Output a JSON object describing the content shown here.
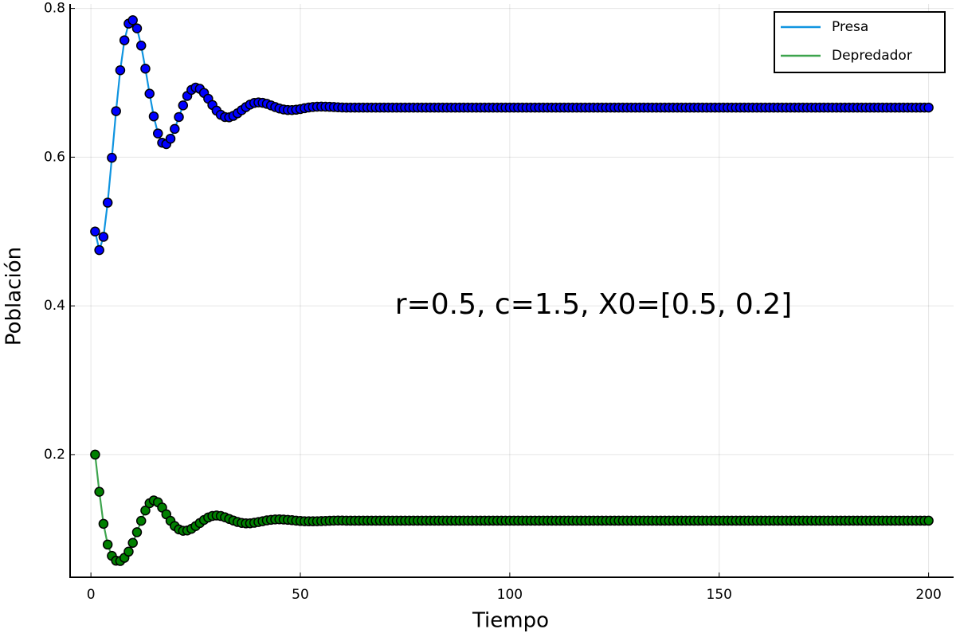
{
  "chart_data": {
    "type": "line",
    "xlabel": "Tiempo",
    "ylabel": "Población",
    "annotation": {
      "text": "r=0.5, c=1.5, X0=[0.5, 0.2]",
      "x": 120,
      "y": 0.4
    },
    "x": [
      1,
      2,
      3,
      4,
      5,
      6,
      7,
      8,
      9,
      10,
      11,
      12,
      13,
      14,
      15,
      16,
      17,
      18,
      19,
      20,
      21,
      22,
      23,
      24,
      25,
      26,
      27,
      28,
      29,
      30,
      31,
      32,
      33,
      34,
      35,
      36,
      37,
      38,
      39,
      40,
      41,
      42,
      43,
      44,
      45,
      46,
      47,
      48,
      49,
      50,
      51,
      52,
      53,
      54,
      55,
      56,
      57,
      58,
      59,
      60,
      61,
      62,
      63,
      64,
      65,
      66,
      67,
      68,
      69,
      70,
      71,
      72,
      73,
      74,
      75,
      76,
      77,
      78,
      79,
      80,
      81,
      82,
      83,
      84,
      85,
      86,
      87,
      88,
      89,
      90,
      91,
      92,
      93,
      94,
      95,
      96,
      97,
      98,
      99,
      100,
      101,
      102,
      103,
      104,
      105,
      106,
      107,
      108,
      109,
      110,
      111,
      112,
      113,
      114,
      115,
      116,
      117,
      118,
      119,
      120,
      121,
      122,
      123,
      124,
      125,
      126,
      127,
      128,
      129,
      130,
      131,
      132,
      133,
      134,
      135,
      136,
      137,
      138,
      139,
      140,
      141,
      142,
      143,
      144,
      145,
      146,
      147,
      148,
      149,
      150,
      151,
      152,
      153,
      154,
      155,
      156,
      157,
      158,
      159,
      160,
      161,
      162,
      163,
      164,
      165,
      166,
      167,
      168,
      169,
      170,
      171,
      172,
      173,
      174,
      175,
      176,
      177,
      178,
      179,
      180,
      181,
      182,
      183,
      184,
      185,
      186,
      187,
      188,
      189,
      190,
      191,
      192,
      193,
      194,
      195,
      196,
      197,
      198,
      199,
      200
    ],
    "series": [
      {
        "name": "Presa",
        "color": "#0f94e0",
        "marker_color": "#0000ff",
        "values": [
          0.5,
          0.475,
          0.4928,
          0.5388,
          0.5992,
          0.6619,
          0.7169,
          0.7572,
          0.7796,
          0.7842,
          0.7732,
          0.75,
          0.719,
          0.6854,
          0.6548,
          0.6319,
          0.6194,
          0.6176,
          0.6248,
          0.638,
          0.654,
          0.6696,
          0.6823,
          0.6905,
          0.6936,
          0.6919,
          0.6864,
          0.6786,
          0.6702,
          0.6626,
          0.657,
          0.654,
          0.6536,
          0.6555,
          0.659,
          0.6632,
          0.6673,
          0.6707,
          0.6729,
          0.6736,
          0.6731,
          0.6717,
          0.6696,
          0.6674,
          0.6655,
          0.6641,
          0.6634,
          0.6633,
          0.6638,
          0.6647,
          0.6658,
          0.6668,
          0.6675,
          0.6679,
          0.668,
          0.6679,
          0.6677,
          0.6674,
          0.6671,
          0.6668,
          0.6667,
          0.6667,
          0.6667,
          0.6667,
          0.6667,
          0.6667,
          0.6667,
          0.6667,
          0.6667,
          0.6667,
          0.6667,
          0.6667,
          0.6667,
          0.6667,
          0.6667,
          0.6667,
          0.6667,
          0.6667,
          0.6667,
          0.6667,
          0.6667,
          0.6667,
          0.6667,
          0.6667,
          0.6667,
          0.6667,
          0.6667,
          0.6667,
          0.6667,
          0.6667,
          0.6667,
          0.6667,
          0.6667,
          0.6667,
          0.6667,
          0.6667,
          0.6667,
          0.6667,
          0.6667,
          0.6667,
          0.6667,
          0.6667,
          0.6667,
          0.6667,
          0.6667,
          0.6667,
          0.6667,
          0.6667,
          0.6667,
          0.6667,
          0.6667,
          0.6667,
          0.6667,
          0.6667,
          0.6667,
          0.6667,
          0.6667,
          0.6667,
          0.6667,
          0.6667,
          0.6667,
          0.6667,
          0.6667,
          0.6667,
          0.6667,
          0.6667,
          0.6667,
          0.6667,
          0.6667,
          0.6667,
          0.6667,
          0.6667,
          0.6667,
          0.6667,
          0.6667,
          0.6667,
          0.6667,
          0.6667,
          0.6667,
          0.6667,
          0.6667,
          0.6667,
          0.6667,
          0.6667,
          0.6667,
          0.6667,
          0.6667,
          0.6667,
          0.6667,
          0.6667,
          0.6667,
          0.6667,
          0.6667,
          0.6667,
          0.6667,
          0.6667,
          0.6667,
          0.6667,
          0.6667,
          0.6667,
          0.6667,
          0.6667,
          0.6667,
          0.6667,
          0.6667,
          0.6667,
          0.6667,
          0.6667,
          0.6667,
          0.6667,
          0.6667,
          0.6667,
          0.6667,
          0.6667,
          0.6667,
          0.6667,
          0.6667,
          0.6667,
          0.6667,
          0.6667,
          0.6667,
          0.6667,
          0.6667,
          0.6667,
          0.6667,
          0.6667,
          0.6667,
          0.6667,
          0.6667,
          0.6667,
          0.6667,
          0.6667,
          0.6667,
          0.6667,
          0.6667,
          0.6667,
          0.6667,
          0.6667,
          0.6667,
          0.6667
        ]
      },
      {
        "name": "Depredador",
        "color": "#3da44d",
        "marker_color": "#008000",
        "values": [
          0.2,
          0.15,
          0.1069,
          0.079,
          0.0638,
          0.0573,
          0.0569,
          0.0612,
          0.0695,
          0.0813,
          0.0956,
          0.1109,
          0.1248,
          0.1346,
          0.1384,
          0.1359,
          0.1288,
          0.1197,
          0.1109,
          0.1039,
          0.0994,
          0.0975,
          0.0979,
          0.1002,
          0.1038,
          0.108,
          0.1121,
          0.1154,
          0.1175,
          0.1181,
          0.1174,
          0.1157,
          0.1135,
          0.1113,
          0.1094,
          0.1081,
          0.1075,
          0.1076,
          0.1083,
          0.1093,
          0.1104,
          0.1115,
          0.1123,
          0.1128,
          0.1129,
          0.1127,
          0.1123,
          0.1118,
          0.1112,
          0.1107,
          0.1104,
          0.1103,
          0.1103,
          0.1104,
          0.1106,
          0.1108,
          0.111,
          0.1112,
          0.1113,
          0.1113,
          0.1111,
          0.1111,
          0.1111,
          0.1111,
          0.1111,
          0.1111,
          0.1111,
          0.1111,
          0.1111,
          0.1111,
          0.1111,
          0.1111,
          0.1111,
          0.1111,
          0.1111,
          0.1111,
          0.1111,
          0.1111,
          0.1111,
          0.1111,
          0.1111,
          0.1111,
          0.1111,
          0.1111,
          0.1111,
          0.1111,
          0.1111,
          0.1111,
          0.1111,
          0.1111,
          0.1111,
          0.1111,
          0.1111,
          0.1111,
          0.1111,
          0.1111,
          0.1111,
          0.1111,
          0.1111,
          0.1111,
          0.1111,
          0.1111,
          0.1111,
          0.1111,
          0.1111,
          0.1111,
          0.1111,
          0.1111,
          0.1111,
          0.1111,
          0.1111,
          0.1111,
          0.1111,
          0.1111,
          0.1111,
          0.1111,
          0.1111,
          0.1111,
          0.1111,
          0.1111,
          0.1111,
          0.1111,
          0.1111,
          0.1111,
          0.1111,
          0.1111,
          0.1111,
          0.1111,
          0.1111,
          0.1111,
          0.1111,
          0.1111,
          0.1111,
          0.1111,
          0.1111,
          0.1111,
          0.1111,
          0.1111,
          0.1111,
          0.1111,
          0.1111,
          0.1111,
          0.1111,
          0.1111,
          0.1111,
          0.1111,
          0.1111,
          0.1111,
          0.1111,
          0.1111,
          0.1111,
          0.1111,
          0.1111,
          0.1111,
          0.1111,
          0.1111,
          0.1111,
          0.1111,
          0.1111,
          0.1111,
          0.1111,
          0.1111,
          0.1111,
          0.1111,
          0.1111,
          0.1111,
          0.1111,
          0.1111,
          0.1111,
          0.1111,
          0.1111,
          0.1111,
          0.1111,
          0.1111,
          0.1111,
          0.1111,
          0.1111,
          0.1111,
          0.1111,
          0.1111,
          0.1111,
          0.1111,
          0.1111,
          0.1111,
          0.1111,
          0.1111,
          0.1111,
          0.1111,
          0.1111,
          0.1111,
          0.1111,
          0.1111,
          0.1111,
          0.1111,
          0.1111,
          0.1111,
          0.1111,
          0.1111,
          0.1111,
          0.1111
        ]
      }
    ],
    "xlim": [
      -4.97,
      205.97
    ],
    "xticks": [
      0,
      50,
      100,
      150,
      200
    ],
    "ylim": [
      0.035,
      0.806
    ],
    "yticks": [
      0.2,
      0.4,
      0.6,
      0.8
    ],
    "grid": true,
    "legend": "top-right"
  }
}
